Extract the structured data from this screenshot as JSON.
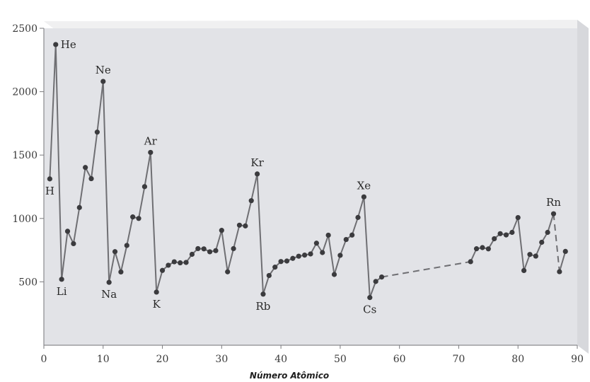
{
  "chart_data": {
    "type": "line",
    "title": "",
    "xlabel": "Número Atômico",
    "ylabel": "",
    "xlim": [
      0,
      90
    ],
    "ylim": [
      0,
      2500
    ],
    "x_ticks": [
      0,
      10,
      20,
      30,
      40,
      50,
      60,
      70,
      80,
      90
    ],
    "y_ticks": [
      500,
      1000,
      1500,
      2000,
      2500
    ],
    "grid": false,
    "series": [
      {
        "points": [
          {
            "x": 1,
            "y": 1312
          },
          {
            "x": 2,
            "y": 2372
          },
          {
            "x": 3,
            "y": 520
          },
          {
            "x": 4,
            "y": 899
          },
          {
            "x": 5,
            "y": 801
          },
          {
            "x": 6,
            "y": 1086
          },
          {
            "x": 7,
            "y": 1402
          },
          {
            "x": 8,
            "y": 1314
          },
          {
            "x": 9,
            "y": 1681
          },
          {
            "x": 10,
            "y": 2081
          },
          {
            "x": 11,
            "y": 496
          },
          {
            "x": 12,
            "y": 738
          },
          {
            "x": 13,
            "y": 578
          },
          {
            "x": 14,
            "y": 787
          },
          {
            "x": 15,
            "y": 1012
          },
          {
            "x": 16,
            "y": 1000
          },
          {
            "x": 17,
            "y": 1251
          },
          {
            "x": 18,
            "y": 1521
          },
          {
            "x": 19,
            "y": 419
          },
          {
            "x": 20,
            "y": 590
          },
          {
            "x": 21,
            "y": 631
          },
          {
            "x": 22,
            "y": 658
          },
          {
            "x": 23,
            "y": 650
          },
          {
            "x": 24,
            "y": 653
          },
          {
            "x": 25,
            "y": 717
          },
          {
            "x": 26,
            "y": 762
          },
          {
            "x": 27,
            "y": 760
          },
          {
            "x": 28,
            "y": 737
          },
          {
            "x": 29,
            "y": 746
          },
          {
            "x": 30,
            "y": 906
          },
          {
            "x": 31,
            "y": 579
          },
          {
            "x": 32,
            "y": 762
          },
          {
            "x": 33,
            "y": 947
          },
          {
            "x": 34,
            "y": 941
          },
          {
            "x": 35,
            "y": 1140
          },
          {
            "x": 36,
            "y": 1351
          },
          {
            "x": 37,
            "y": 403
          },
          {
            "x": 38,
            "y": 550
          },
          {
            "x": 39,
            "y": 616
          },
          {
            "x": 40,
            "y": 660
          },
          {
            "x": 41,
            "y": 664
          },
          {
            "x": 42,
            "y": 685
          },
          {
            "x": 43,
            "y": 702
          },
          {
            "x": 44,
            "y": 711
          },
          {
            "x": 45,
            "y": 720
          },
          {
            "x": 46,
            "y": 805
          },
          {
            "x": 47,
            "y": 731
          },
          {
            "x": 48,
            "y": 868
          },
          {
            "x": 49,
            "y": 558
          },
          {
            "x": 50,
            "y": 709
          },
          {
            "x": 51,
            "y": 834
          },
          {
            "x": 52,
            "y": 869
          },
          {
            "x": 53,
            "y": 1008
          },
          {
            "x": 54,
            "y": 1170
          },
          {
            "x": 55,
            "y": 376
          },
          {
            "x": 56,
            "y": 503
          },
          {
            "x": 57,
            "y": 538
          },
          {
            "x": 72,
            "y": 659
          },
          {
            "x": 73,
            "y": 761
          },
          {
            "x": 74,
            "y": 770
          },
          {
            "x": 75,
            "y": 760
          },
          {
            "x": 76,
            "y": 840
          },
          {
            "x": 77,
            "y": 880
          },
          {
            "x": 78,
            "y": 870
          },
          {
            "x": 79,
            "y": 890
          },
          {
            "x": 80,
            "y": 1007
          },
          {
            "x": 81,
            "y": 589
          },
          {
            "x": 82,
            "y": 716
          },
          {
            "x": 83,
            "y": 703
          },
          {
            "x": 84,
            "y": 812
          },
          {
            "x": 85,
            "y": 890
          },
          {
            "x": 86,
            "y": 1037
          },
          {
            "x": 87,
            "y": 580
          },
          {
            "x": 88,
            "y": 740
          }
        ],
        "dashed_segments": [
          [
            57,
            72
          ],
          [
            86,
            87
          ]
        ]
      }
    ],
    "annotations": [
      {
        "text": "H",
        "x": 1,
        "y": 1312,
        "pos": "below"
      },
      {
        "text": "He",
        "x": 2,
        "y": 2372,
        "pos": "right"
      },
      {
        "text": "Li",
        "x": 3,
        "y": 520,
        "pos": "below"
      },
      {
        "text": "Ne",
        "x": 10,
        "y": 2081,
        "pos": "above"
      },
      {
        "text": "Na",
        "x": 11,
        "y": 496,
        "pos": "below"
      },
      {
        "text": "Ar",
        "x": 18,
        "y": 1521,
        "pos": "above"
      },
      {
        "text": "K",
        "x": 19,
        "y": 419,
        "pos": "below"
      },
      {
        "text": "Kr",
        "x": 36,
        "y": 1351,
        "pos": "above"
      },
      {
        "text": "Rb",
        "x": 37,
        "y": 403,
        "pos": "below"
      },
      {
        "text": "Xe",
        "x": 54,
        "y": 1170,
        "pos": "above"
      },
      {
        "text": "Cs",
        "x": 55,
        "y": 376,
        "pos": "below"
      },
      {
        "text": "Rn",
        "x": 86,
        "y": 1037,
        "pos": "above"
      }
    ]
  },
  "colors": {
    "panel": "#e2e3e7",
    "line": "#6f6f73",
    "point": "#3b3b3e"
  }
}
